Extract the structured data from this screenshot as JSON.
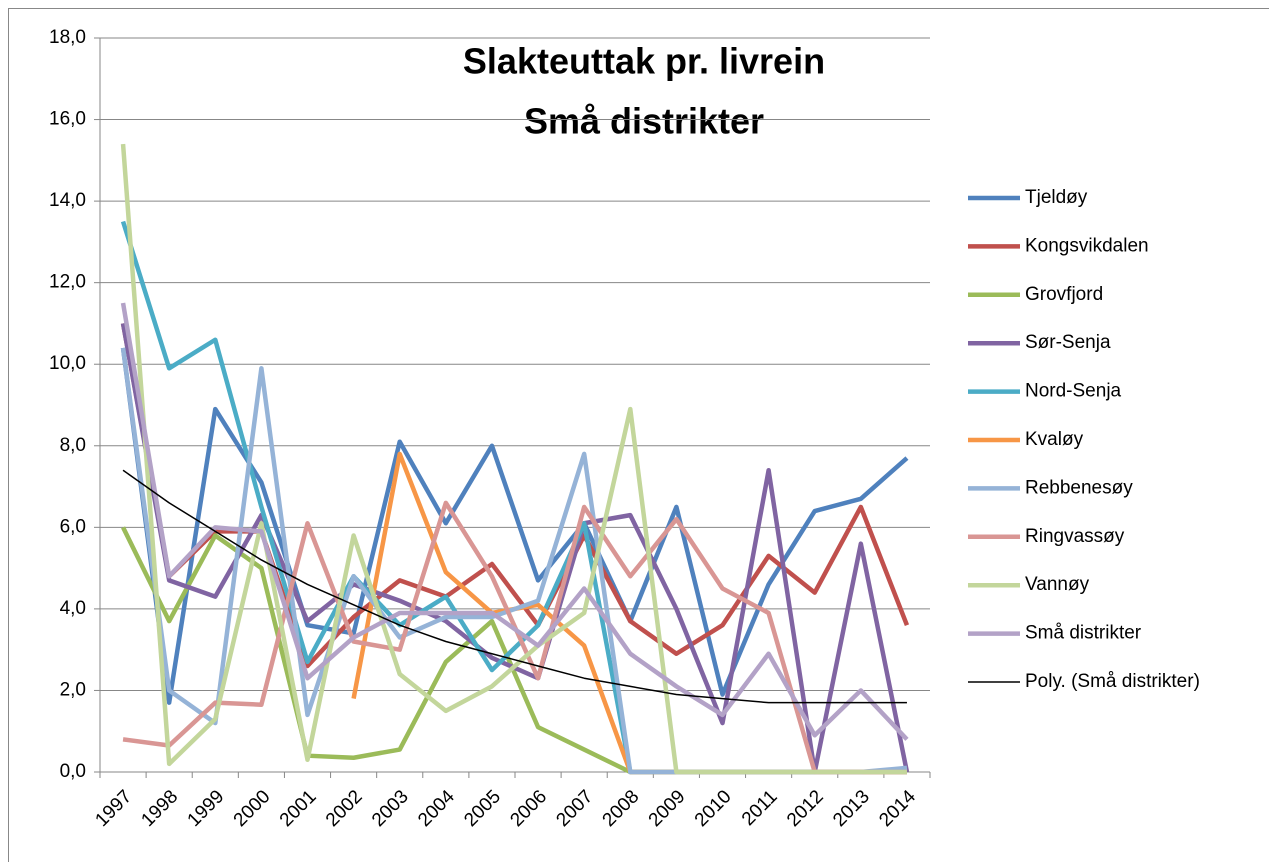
{
  "chart_data": {
    "type": "line",
    "title": "Slakteuttak pr. livrein",
    "subtitle": "Små distrikter",
    "categories": [
      "1997",
      "1998",
      "1999",
      "2000",
      "2001",
      "2002",
      "2003",
      "2004",
      "2005",
      "2006",
      "2007",
      "2008",
      "2009",
      "2010",
      "2011",
      "2012",
      "2013",
      "2014"
    ],
    "ylim": [
      0,
      18
    ],
    "yticks": [
      {
        "value": 0,
        "label": "0,0"
      },
      {
        "value": 2,
        "label": "2,0"
      },
      {
        "value": 4,
        "label": "4,0"
      },
      {
        "value": 6,
        "label": "6,0"
      },
      {
        "value": 8,
        "label": "8,0"
      },
      {
        "value": 10,
        "label": "10,0"
      },
      {
        "value": 12,
        "label": "12,0"
      },
      {
        "value": 14,
        "label": "14,0"
      },
      {
        "value": 16,
        "label": "16,0"
      },
      {
        "value": 18,
        "label": "18,0"
      }
    ],
    "grid": true,
    "legend": "right",
    "series": [
      {
        "name": "Tjeldøy",
        "color": "#4F81BD",
        "values": [
          10.4,
          1.7,
          8.9,
          7.1,
          3.6,
          3.4,
          8.1,
          6.1,
          8.0,
          4.7,
          6.1,
          3.7,
          6.5,
          1.9,
          4.6,
          6.4,
          6.7,
          7.7
        ]
      },
      {
        "name": "Kongsvikdalen",
        "color": "#C0504D",
        "values": [
          11.0,
          4.8,
          5.9,
          5.9,
          2.6,
          3.8,
          4.7,
          4.3,
          5.1,
          3.6,
          5.8,
          3.7,
          2.9,
          3.6,
          5.3,
          4.4,
          6.5,
          3.6
        ]
      },
      {
        "name": "Grovfjord",
        "color": "#9BBB59",
        "values": [
          6.0,
          3.7,
          5.8,
          5.0,
          0.4,
          0.35,
          0.55,
          2.7,
          3.7,
          1.1,
          0.55,
          0,
          0,
          0,
          0,
          0,
          0,
          0
        ]
      },
      {
        "name": "Sør-Senja",
        "color": "#8064A2",
        "values": [
          11.0,
          4.7,
          4.3,
          6.3,
          3.7,
          4.6,
          4.2,
          3.7,
          2.8,
          2.3,
          6.1,
          6.3,
          4.0,
          1.2,
          7.4,
          0,
          5.6,
          0
        ]
      },
      {
        "name": "Nord-Senja",
        "color": "#4BACC6",
        "values": [
          13.5,
          9.9,
          10.6,
          6.5,
          2.7,
          4.8,
          3.6,
          4.3,
          2.5,
          3.6,
          6.1,
          0,
          0,
          0,
          0,
          0,
          0,
          0
        ]
      },
      {
        "name": "Kvaløy",
        "color": "#F79646",
        "values": [
          null,
          null,
          null,
          null,
          null,
          1.8,
          7.8,
          4.9,
          3.9,
          4.1,
          3.1,
          0,
          0,
          0,
          0,
          0,
          0,
          0
        ]
      },
      {
        "name": "Rebbenesøy",
        "color": "#95B3D7",
        "values": [
          10.4,
          2.0,
          1.2,
          9.9,
          1.4,
          4.8,
          3.3,
          3.8,
          3.8,
          4.2,
          7.8,
          0,
          0,
          0,
          0,
          0,
          0,
          0.1
        ]
      },
      {
        "name": "Ringvassøy",
        "color": "#D99694",
        "values": [
          0.8,
          0.65,
          1.7,
          1.65,
          6.1,
          3.2,
          3.0,
          6.6,
          4.8,
          2.3,
          6.5,
          4.8,
          6.2,
          4.5,
          3.9,
          0,
          0,
          0
        ]
      },
      {
        "name": "Vannøy",
        "color": "#C3D69B",
        "values": [
          15.4,
          0.2,
          1.3,
          6.1,
          0.3,
          5.8,
          2.4,
          1.5,
          2.1,
          3.1,
          3.9,
          8.9,
          0,
          0,
          0,
          0,
          0,
          0
        ]
      },
      {
        "name": "Små distrikter",
        "color": "#B3A2C7",
        "values": [
          11.5,
          4.8,
          6.0,
          5.9,
          2.3,
          3.3,
          3.9,
          3.9,
          3.9,
          3.1,
          4.5,
          2.9,
          2.1,
          1.4,
          2.9,
          0.9,
          2.0,
          0.8
        ]
      },
      {
        "name": "Poly. (Små distrikter)",
        "color": "#000000",
        "values": [
          7.4,
          6.6,
          5.9,
          5.2,
          4.6,
          4.1,
          3.6,
          3.2,
          2.9,
          2.6,
          2.3,
          2.1,
          1.9,
          1.8,
          1.7,
          1.7,
          1.7,
          1.7
        ]
      }
    ]
  }
}
